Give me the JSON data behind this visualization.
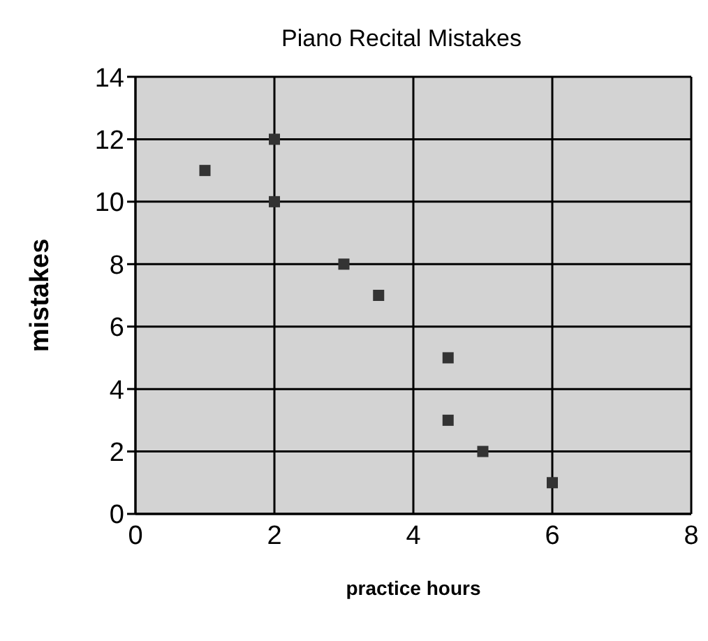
{
  "chart_data": {
    "type": "scatter",
    "title": "Piano Recital Mistakes",
    "xlabel": "practice hours",
    "ylabel": "mistakes",
    "x": [
      1,
      2,
      2,
      3,
      3.5,
      4.5,
      4.5,
      5,
      6
    ],
    "values": [
      11,
      12,
      10,
      8,
      7,
      5,
      3,
      2,
      1
    ],
    "color": "#333333",
    "xlim": [
      0,
      8
    ],
    "xticks": [
      0,
      2,
      4,
      6,
      8
    ],
    "ylim": [
      0,
      14
    ],
    "yticks": [
      0,
      2,
      4,
      6,
      8,
      10,
      12,
      14
    ],
    "grid": true,
    "marker": "square"
  }
}
